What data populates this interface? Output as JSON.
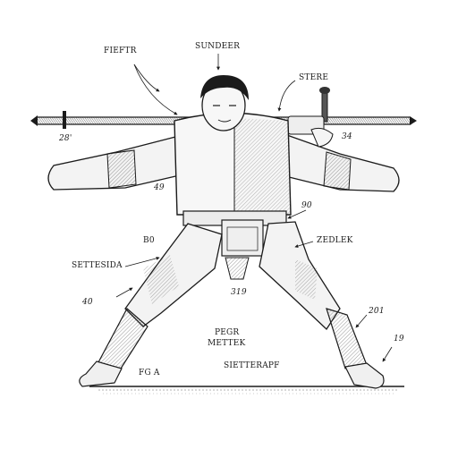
{
  "labels": {
    "fiftr": "FIEFTR",
    "sundeer": "SUNDEER",
    "stere": "STERE",
    "n28": "28'",
    "n34": "34",
    "n49": "49",
    "n90": "90",
    "b0": "B0",
    "zedlek": "ZEDLEK",
    "settesida": "SETTESIDA",
    "n319": "319",
    "n40": "40",
    "n201": "201",
    "n19": "19",
    "pegr": "PEGR",
    "mettek": "METTEK",
    "sietterapf": "SIETTERAPF",
    "fga": "FG A"
  },
  "colors": {
    "ink": "#1b1b1b",
    "paper": "#ffffff",
    "shade": "#8a8a8a"
  },
  "icons": {
    "staff": "staff-weapon-icon",
    "figure": "fencer-figure-drawing"
  }
}
